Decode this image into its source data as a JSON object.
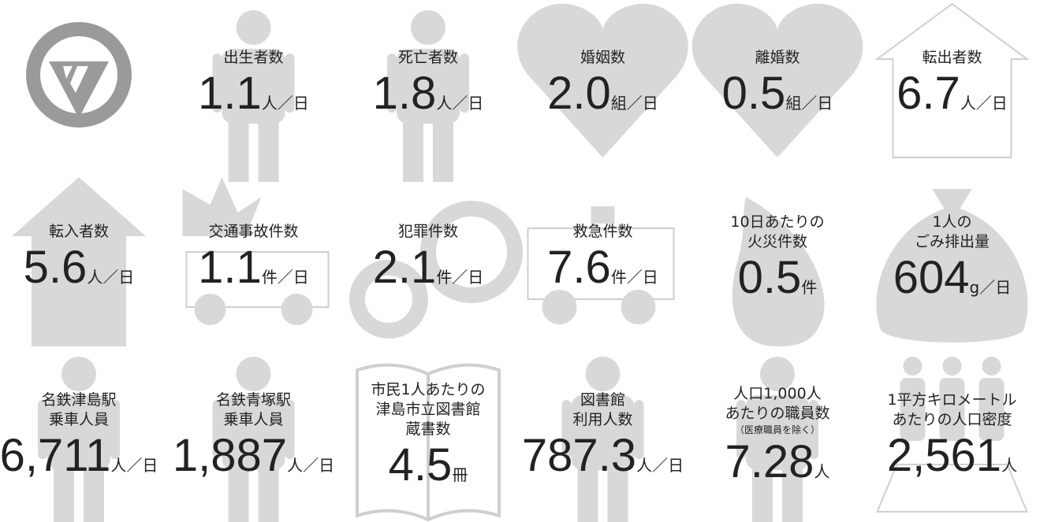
{
  "cells": [
    {
      "label": [
        "出生者数"
      ],
      "value": "1.1",
      "unit": "人／日"
    },
    {
      "label": [
        "死亡者数"
      ],
      "value": "1.8",
      "unit": "人／日"
    },
    {
      "label": [
        "婚姻数"
      ],
      "value": "2.0",
      "unit": "組／日"
    },
    {
      "label": [
        "離婚数"
      ],
      "value": "0.5",
      "unit": "組／日"
    },
    {
      "label": [
        "転出者数"
      ],
      "value": "6.7",
      "unit": "人／日"
    },
    {
      "label": [
        "転入者数"
      ],
      "value": "5.6",
      "unit": "人／日"
    },
    {
      "label": [
        "交通事故件数"
      ],
      "value": "1.1",
      "unit": "件／日"
    },
    {
      "label": [
        "犯罪件数"
      ],
      "value": "2.1",
      "unit": "件／日"
    },
    {
      "label": [
        "救急件数"
      ],
      "value": "7.6",
      "unit": "件／日"
    },
    {
      "label": [
        "10日あたりの",
        "火災件数"
      ],
      "value": "0.5",
      "unit": "件"
    },
    {
      "label": [
        "1人の",
        "ごみ排出量"
      ],
      "value": "604",
      "unit": "g／日"
    },
    {
      "label": [
        "名鉄津島駅",
        "乗車人員"
      ],
      "value": "6,711",
      "unit": "人／日"
    },
    {
      "label": [
        "名鉄青塚駅",
        "乗車人員"
      ],
      "value": "1,887",
      "unit": "人／日"
    },
    {
      "label": [
        "市民1人あたりの",
        "津島市立図書館",
        "蔵書数"
      ],
      "value": "4.5",
      "unit": "冊"
    },
    {
      "label": [
        "図書館",
        "利用人数"
      ],
      "value": "787.3",
      "unit": "人／日"
    },
    {
      "label": [
        "人口1,000人",
        "あたりの職員数"
      ],
      "note": "（医療職員を除く）",
      "value": "7.28",
      "unit": "人"
    },
    {
      "label": [
        "1平方キロメートル",
        "あたりの人口密度"
      ],
      "value": "2,561",
      "unit": "人"
    }
  ]
}
